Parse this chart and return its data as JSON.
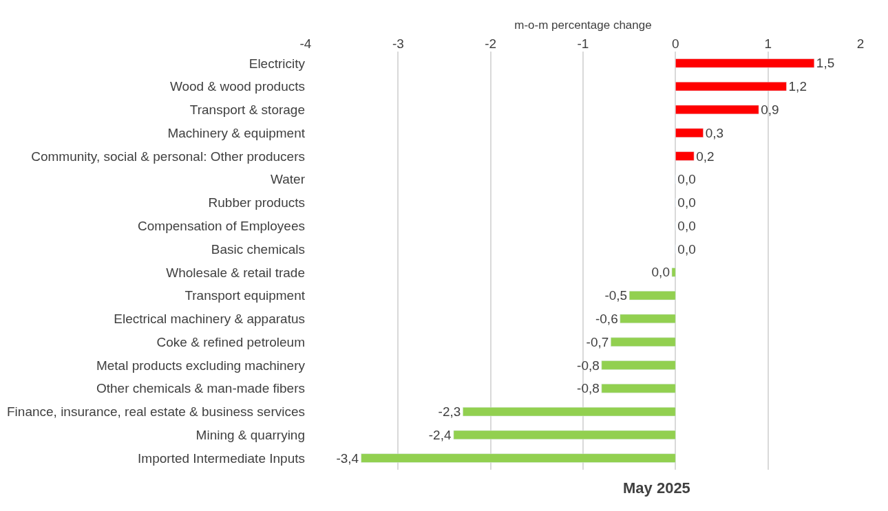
{
  "chart_data": {
    "type": "bar",
    "orientation": "horizontal",
    "xlabel": "m-o-m percentage change",
    "annotations": [
      "May 2025"
    ],
    "categories": [
      "Electricity",
      "Wood & wood products",
      "Transport & storage",
      "Machinery & equipment",
      "Community, social & personal: Other producers",
      "Water",
      "Rubber products",
      "Compensation of Employees",
      "Basic chemicals",
      "Wholesale & retail trade",
      "Transport equipment",
      "Electrical machinery & apparatus",
      "Coke & refined petroleum",
      "Metal products excluding machinery",
      "Other chemicals & man-made fibers",
      "Finance, insurance, real estate & business services",
      "Mining & quarrying",
      "Imported Intermediate Inputs"
    ],
    "values": [
      1.5,
      1.2,
      0.9,
      0.3,
      0.2,
      0,
      0,
      0,
      0,
      -0.04,
      -0.5,
      -0.6,
      -0.7,
      -0.8,
      -0.8,
      -2.3,
      -2.4,
      -3.4
    ],
    "value_labels": [
      "1,5",
      "1,2",
      "0,9",
      "0,3",
      "0,2",
      "0,0",
      "0,0",
      "0,0",
      "0,0",
      "0,0",
      "-0,5",
      "-0,6",
      "-0,7",
      "-0,8",
      "-0,8",
      "-2,3",
      "-2,4",
      "-3,4"
    ],
    "colors": [
      "#ff0000",
      "#ff0000",
      "#ff0000",
      "#ff0000",
      "#ff0000",
      null,
      null,
      null,
      null,
      "#92d050",
      "#92d050",
      "#92d050",
      "#92d050",
      "#92d050",
      "#92d050",
      "#92d050",
      "#92d050",
      "#92d050"
    ],
    "xlim": [
      -4,
      2
    ],
    "xticks": [
      -4,
      -3,
      -2,
      -1,
      0,
      1,
      2
    ],
    "grid": "x"
  }
}
